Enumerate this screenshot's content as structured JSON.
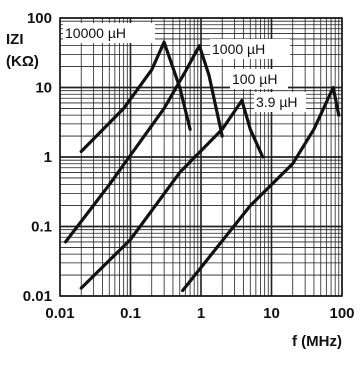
{
  "chart_data": {
    "type": "line",
    "x_scale": "log",
    "y_scale": "log",
    "xlim": [
      0.01,
      100
    ],
    "ylim": [
      0.01,
      100
    ],
    "grid": true,
    "xlabel": "f (MHz)",
    "ylabel_line1": "IZI",
    "ylabel_line2": "(KΩ)",
    "x_ticks": [
      0.01,
      0.1,
      1,
      10,
      100
    ],
    "x_tick_labels": [
      "0.01",
      "0.1",
      "1",
      "10",
      "100"
    ],
    "y_ticks": [
      0.01,
      0.1,
      1,
      10,
      100
    ],
    "y_tick_labels": [
      "0.01",
      "0.1",
      "1",
      "10",
      "100"
    ],
    "series": [
      {
        "name": "10000 µH",
        "points": [
          [
            0.02,
            1.2
          ],
          [
            0.08,
            5
          ],
          [
            0.2,
            18
          ],
          [
            0.3,
            45
          ],
          [
            0.5,
            10
          ],
          [
            0.7,
            2.5
          ]
        ]
      },
      {
        "name": "1000 µH",
        "points": [
          [
            0.012,
            0.06
          ],
          [
            0.05,
            0.4
          ],
          [
            0.3,
            5
          ],
          [
            0.6,
            17
          ],
          [
            0.95,
            40
          ],
          [
            1.3,
            15
          ],
          [
            2.0,
            2.0
          ]
        ]
      },
      {
        "name": "100 µH",
        "points": [
          [
            0.02,
            0.013
          ],
          [
            0.1,
            0.065
          ],
          [
            0.5,
            0.6
          ],
          [
            2.0,
            2.5
          ],
          [
            3.8,
            6.5
          ],
          [
            5.0,
            2.5
          ],
          [
            7.5,
            1.0
          ]
        ]
      },
      {
        "name": "3.9 µH",
        "points": [
          [
            0.55,
            0.012
          ],
          [
            5,
            0.2
          ],
          [
            20,
            0.8
          ],
          [
            40,
            2.5
          ],
          [
            75,
            10
          ],
          [
            90,
            4
          ]
        ]
      }
    ]
  }
}
